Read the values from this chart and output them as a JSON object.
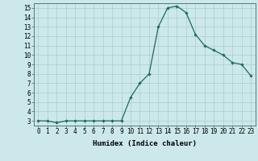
{
  "x": [
    0,
    1,
    2,
    3,
    4,
    5,
    6,
    7,
    8,
    9,
    10,
    11,
    12,
    13,
    14,
    15,
    16,
    17,
    18,
    19,
    20,
    21,
    22,
    23
  ],
  "y": [
    3,
    3,
    2.8,
    3,
    3,
    3,
    3,
    3,
    3,
    3,
    5.5,
    7,
    8,
    13,
    15,
    15.2,
    14.5,
    12.2,
    11,
    10.5,
    10,
    9.2,
    9,
    7.8
  ],
  "line_color": "#1a6b5a",
  "marker": "D",
  "marker_size": 1.8,
  "bg_color": "#cce8ea",
  "grid_color": "#aacccc",
  "xlabel": "Humidex (Indice chaleur)",
  "ylim": [
    2.5,
    15.5
  ],
  "xlim": [
    -0.5,
    23.5
  ],
  "yticks": [
    3,
    4,
    5,
    6,
    7,
    8,
    9,
    10,
    11,
    12,
    13,
    14,
    15
  ],
  "xticks": [
    0,
    1,
    2,
    3,
    4,
    5,
    6,
    7,
    8,
    9,
    10,
    11,
    12,
    13,
    14,
    15,
    16,
    17,
    18,
    19,
    20,
    21,
    22,
    23
  ],
  "xlabel_fontsize": 6.5,
  "tick_fontsize": 5.5,
  "linewidth": 0.9
}
